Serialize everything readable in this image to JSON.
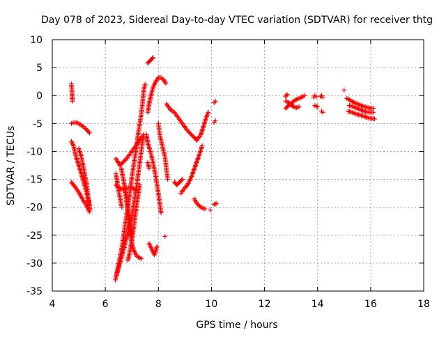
{
  "chart_data": {
    "type": "scatter",
    "title": "Day 078 of 2023, Sidereal Day-to-day VTEC variation (SDTVAR) for receiver thtg",
    "xlabel": "GPS time / hours",
    "ylabel": "SDTVAR / TECUs",
    "xlim": [
      4,
      18
    ],
    "ylim": [
      -35,
      10
    ],
    "xticks": [
      4,
      6,
      8,
      10,
      12,
      14,
      16,
      18
    ],
    "yticks": [
      -35,
      -30,
      -25,
      -20,
      -15,
      -10,
      -5,
      0,
      5,
      10
    ],
    "grid": true,
    "marker": "plus",
    "color": "#ff0000",
    "segments": [
      [
        [
          4.72,
          2.1
        ],
        [
          4.74,
          1.0
        ],
        [
          4.75,
          0.0
        ],
        [
          4.76,
          -1.0
        ]
      ],
      [
        [
          4.72,
          -5.0
        ],
        [
          4.85,
          -4.8
        ],
        [
          5.0,
          -5.0
        ],
        [
          5.15,
          -5.5
        ],
        [
          5.3,
          -6.1
        ],
        [
          5.4,
          -6.7
        ]
      ],
      [
        [
          4.72,
          -8.2
        ],
        [
          4.8,
          -9.0
        ],
        [
          4.9,
          -11.0
        ],
        [
          5.0,
          -12.5
        ],
        [
          5.1,
          -14.0
        ],
        [
          5.2,
          -15.8
        ],
        [
          5.3,
          -17.5
        ],
        [
          5.38,
          -19.0
        ],
        [
          5.42,
          -20.5
        ]
      ],
      [
        [
          5.0,
          -9.5
        ],
        [
          5.1,
          -11.0
        ],
        [
          5.2,
          -13.5
        ],
        [
          5.3,
          -16.0
        ],
        [
          5.35,
          -18.0
        ],
        [
          5.4,
          -20.0
        ]
      ],
      [
        [
          4.72,
          -15.5
        ],
        [
          4.85,
          -16.3
        ],
        [
          5.0,
          -17.3
        ],
        [
          5.1,
          -18.2
        ],
        [
          5.2,
          -19.0
        ],
        [
          5.3,
          -19.8
        ],
        [
          5.4,
          -20.8
        ]
      ],
      [
        [
          6.38,
          -33.0
        ],
        [
          6.45,
          -31.5
        ],
        [
          6.55,
          -29.0
        ],
        [
          6.65,
          -26.5
        ],
        [
          6.75,
          -23.0
        ],
        [
          6.85,
          -20.0
        ],
        [
          6.95,
          -16.5
        ],
        [
          7.05,
          -13.0
        ],
        [
          7.15,
          -10.0
        ],
        [
          7.25,
          -6.5
        ],
        [
          7.35,
          -3.5
        ],
        [
          7.4,
          -1.5
        ],
        [
          7.45,
          1.0
        ],
        [
          7.5,
          2.0
        ]
      ],
      [
        [
          6.4,
          -32.5
        ],
        [
          6.55,
          -30.0
        ],
        [
          6.7,
          -27.5
        ],
        [
          6.85,
          -24.5
        ],
        [
          7.0,
          -21.5
        ],
        [
          7.1,
          -18.5
        ],
        [
          7.2,
          -15.5
        ],
        [
          7.3,
          -12.0
        ],
        [
          7.38,
          -9.0
        ],
        [
          7.45,
          -7.0
        ]
      ],
      [
        [
          6.4,
          -11.3
        ],
        [
          6.55,
          -12.5
        ],
        [
          6.7,
          -11.8
        ],
        [
          6.85,
          -11.0
        ],
        [
          7.0,
          -10.0
        ],
        [
          7.15,
          -9.0
        ],
        [
          7.3,
          -8.0
        ],
        [
          7.45,
          -7.0
        ]
      ],
      [
        [
          6.4,
          -16.0
        ],
        [
          6.5,
          -16.5
        ],
        [
          6.65,
          -16.8
        ],
        [
          6.8,
          -16.5
        ],
        [
          7.0,
          -16.5
        ],
        [
          7.2,
          -17.0
        ]
      ],
      [
        [
          6.75,
          -16.5
        ],
        [
          6.82,
          -19.0
        ],
        [
          6.9,
          -23.0
        ],
        [
          7.0,
          -26.5
        ],
        [
          7.1,
          -28.0
        ],
        [
          7.2,
          -28.8
        ],
        [
          7.35,
          -29.2
        ]
      ],
      [
        [
          6.6,
          -13.0
        ],
        [
          6.7,
          -15.5
        ],
        [
          6.8,
          -19.0
        ],
        [
          6.9,
          -22.0
        ],
        [
          7.0,
          -25.0
        ]
      ],
      [
        [
          6.4,
          -14.0
        ],
        [
          6.5,
          -17.0
        ],
        [
          6.62,
          -20.0
        ]
      ],
      [
        [
          7.3,
          -16.0
        ],
        [
          7.2,
          -19.0
        ],
        [
          7.1,
          -22.5
        ],
        [
          7.0,
          -26.0
        ],
        [
          6.9,
          -28.5
        ],
        [
          6.85,
          -29.5
        ]
      ],
      [
        [
          7.55,
          -7.0
        ],
        [
          7.6,
          -8.5
        ],
        [
          7.7,
          -10.0
        ],
        [
          7.8,
          -12.0
        ],
        [
          7.9,
          -14.5
        ],
        [
          8.0,
          -17.5
        ],
        [
          8.1,
          -21.0
        ]
      ],
      [
        [
          7.65,
          -26.5
        ],
        [
          7.75,
          -27.5
        ],
        [
          7.85,
          -28.5
        ],
        [
          7.95,
          -27.0
        ]
      ],
      [
        [
          7.6,
          -12.0
        ],
        [
          7.65,
          -13.0
        ]
      ],
      [
        [
          8.25,
          -25.2
        ]
      ],
      [
        [
          7.6,
          5.8
        ],
        [
          7.7,
          6.3
        ],
        [
          7.8,
          6.8
        ]
      ],
      [
        [
          7.6,
          -3.0
        ],
        [
          7.65,
          -1.5
        ],
        [
          7.72,
          0.0
        ],
        [
          7.8,
          1.5
        ],
        [
          7.9,
          2.5
        ],
        [
          8.0,
          3.2
        ],
        [
          8.1,
          3.2
        ],
        [
          8.2,
          2.8
        ],
        [
          8.28,
          2.2
        ]
      ],
      [
        [
          8.0,
          -5.0
        ],
        [
          8.05,
          -7.0
        ],
        [
          8.15,
          -9.0
        ],
        [
          8.25,
          -11.0
        ],
        [
          8.3,
          -13.0
        ],
        [
          8.35,
          -15.0
        ]
      ],
      [
        [
          8.3,
          -1.5
        ],
        [
          8.45,
          -2.5
        ],
        [
          8.6,
          -3.0
        ],
        [
          8.75,
          -4.0
        ],
        [
          8.9,
          -5.0
        ],
        [
          9.05,
          -6.0
        ],
        [
          9.2,
          -6.8
        ],
        [
          9.35,
          -7.5
        ],
        [
          9.45,
          -8.0
        ]
      ],
      [
        [
          8.6,
          -15.5
        ],
        [
          8.7,
          -16.0
        ],
        [
          8.8,
          -15.5
        ],
        [
          8.9,
          -15.0
        ]
      ],
      [
        [
          8.85,
          -17.5
        ],
        [
          9.0,
          -16.5
        ],
        [
          9.1,
          -16.0
        ],
        [
          9.25,
          -14.5
        ],
        [
          9.4,
          -12.5
        ],
        [
          9.55,
          -10.5
        ],
        [
          9.65,
          -9.0
        ]
      ],
      [
        [
          9.45,
          -8.0
        ],
        [
          9.6,
          -7.0
        ],
        [
          9.7,
          -5.5
        ],
        [
          9.8,
          -4.0
        ],
        [
          9.88,
          -3.0
        ]
      ],
      [
        [
          9.35,
          -18.5
        ],
        [
          9.45,
          -19.3
        ],
        [
          9.6,
          -20.0
        ],
        [
          9.75,
          -20.3
        ]
      ],
      [
        [
          9.95,
          -20.5
        ]
      ],
      [
        [
          10.1,
          -4.8
        ],
        [
          10.15,
          -4.5
        ]
      ],
      [
        [
          10.1,
          -1.3
        ],
        [
          10.15,
          -1.0
        ]
      ],
      [
        [
          10.1,
          -19.5
        ],
        [
          10.2,
          -19.3
        ]
      ],
      [
        [
          12.8,
          -2.3
        ],
        [
          12.9,
          -1.8
        ],
        [
          13.0,
          -1.5
        ],
        [
          13.1,
          -1.0
        ],
        [
          13.2,
          -0.7
        ],
        [
          13.3,
          -0.5
        ],
        [
          13.4,
          -0.3
        ],
        [
          13.5,
          0.0
        ]
      ],
      [
        [
          12.8,
          -1.0
        ],
        [
          12.9,
          -1.2
        ],
        [
          13.0,
          -1.7
        ],
        [
          13.1,
          -2.0
        ],
        [
          13.2,
          -2.2
        ],
        [
          13.3,
          -2.0
        ]
      ],
      [
        [
          12.8,
          -0.2
        ],
        [
          12.85,
          0.2
        ]
      ],
      [
        [
          13.85,
          -0.3
        ],
        [
          13.9,
          0.0
        ],
        [
          13.95,
          -0.2
        ]
      ],
      [
        [
          14.1,
          -0.2
        ],
        [
          14.15,
          0.0
        ],
        [
          14.2,
          -0.3
        ]
      ],
      [
        [
          13.9,
          -1.8
        ],
        [
          14.0,
          -2.0
        ]
      ],
      [
        [
          14.15,
          -2.8
        ],
        [
          14.2,
          -3.0
        ]
      ],
      [
        [
          15.0,
          1.0
        ]
      ],
      [
        [
          15.1,
          -0.5
        ],
        [
          15.25,
          -0.9
        ],
        [
          15.4,
          -1.3
        ],
        [
          15.55,
          -1.6
        ],
        [
          15.7,
          -1.9
        ],
        [
          15.85,
          -2.1
        ],
        [
          16.0,
          -2.3
        ],
        [
          16.1,
          -2.3
        ]
      ],
      [
        [
          15.2,
          -1.8
        ],
        [
          15.35,
          -2.0
        ],
        [
          15.5,
          -2.3
        ],
        [
          15.65,
          -2.6
        ],
        [
          15.8,
          -2.9
        ],
        [
          15.95,
          -3.0
        ],
        [
          16.1,
          -3.0
        ]
      ],
      [
        [
          15.15,
          -2.8
        ],
        [
          15.3,
          -3.0
        ],
        [
          15.45,
          -3.3
        ],
        [
          15.6,
          -3.5
        ],
        [
          15.75,
          -3.7
        ],
        [
          15.9,
          -4.0
        ],
        [
          16.05,
          -4.1
        ],
        [
          16.15,
          -4.2
        ]
      ]
    ]
  }
}
